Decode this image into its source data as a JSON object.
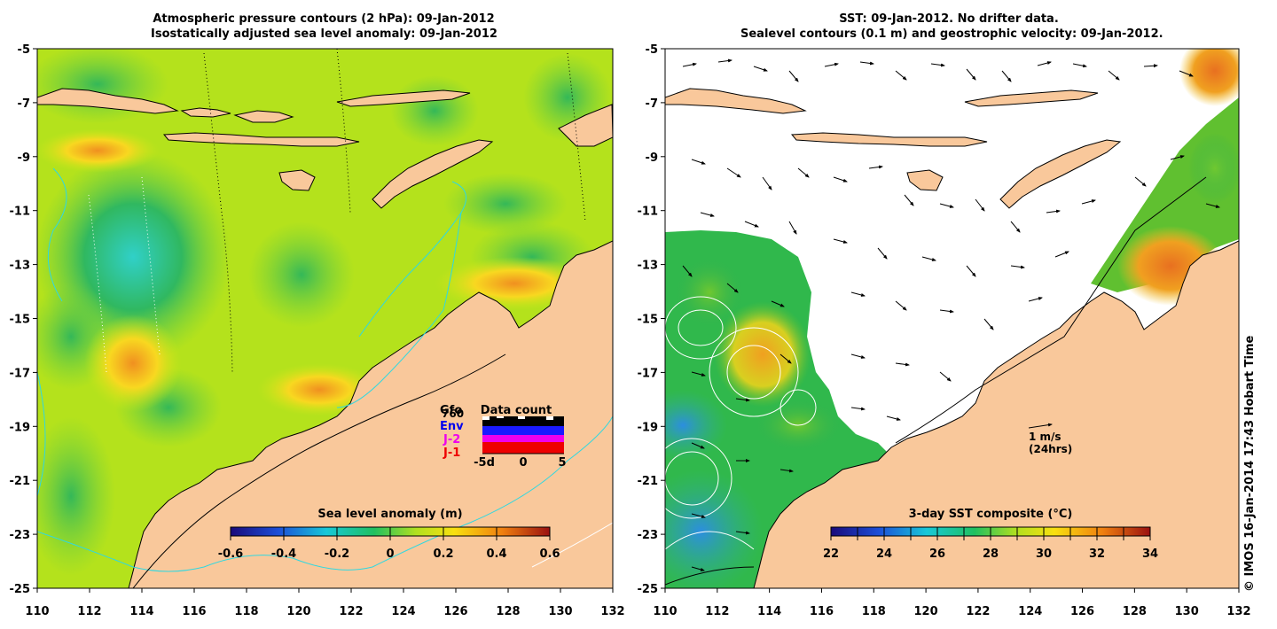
{
  "left_panel": {
    "title_line1": "Atmospheric pressure contours (2 hPa): 09-Jan-2012",
    "title_line2": "Isostatically adjusted sea level anomaly: 09-Jan-2012",
    "colorbar": {
      "label": "Sea level anomaly (m)",
      "ticks": [
        "-0.6",
        "-0.4",
        "-0.2",
        "0",
        "0.2",
        "0.4",
        "0.6"
      ]
    },
    "data_count": {
      "title": "Data count",
      "labels": [
        "Gfo",
        "760",
        "Env",
        "J-2",
        "J-1"
      ],
      "axis_ticks": [
        "-5d",
        "0",
        "5"
      ]
    }
  },
  "right_panel": {
    "title_line1": "SST: 09-Jan-2012. No drifter data.",
    "title_line2": "Sealevel contours (0.1 m) and geostrophic velocity: 09-Jan-2012.",
    "colorbar": {
      "label": "3-day SST composite (°C)",
      "ticks": [
        "22",
        "24",
        "26",
        "28",
        "30",
        "32",
        "34"
      ]
    },
    "scale_arrow": {
      "label": "1 m/s",
      "sublabel": "(24hrs)"
    }
  },
  "axes": {
    "x_ticks": [
      "110",
      "112",
      "114",
      "116",
      "118",
      "120",
      "122",
      "124",
      "126",
      "128",
      "130",
      "132"
    ],
    "y_ticks": [
      "-5",
      "-7",
      "-9",
      "-11",
      "-13",
      "-15",
      "-17",
      "-19",
      "-21",
      "-23",
      "-25"
    ]
  },
  "credit": "© IMOS 16-Jan-2014 17:43 Hobart Time",
  "colors": {
    "land": "#f9c89b",
    "coast": "#000000",
    "contour_cyan": "#30d8e0"
  }
}
